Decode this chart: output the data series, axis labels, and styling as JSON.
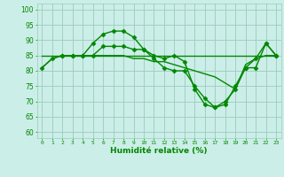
{
  "background_color": "#cceee8",
  "grid_color": "#99ccbb",
  "line_color": "#008800",
  "marker_color": "#008800",
  "xlabel": "Humidité relative (%)",
  "xlabel_color": "#008800",
  "ylabel_ticks": [
    60,
    65,
    70,
    75,
    80,
    85,
    90,
    95,
    100
  ],
  "xlim": [
    -0.5,
    23.5
  ],
  "ylim": [
    58,
    102
  ],
  "series": [
    {
      "x": [
        0,
        1,
        2,
        3,
        4,
        5,
        6,
        7,
        8,
        9,
        10,
        11,
        12,
        13,
        14,
        15,
        16,
        17,
        18,
        19,
        20,
        21,
        22,
        23
      ],
      "y": [
        81,
        84,
        85,
        85,
        85,
        89,
        92,
        93,
        93,
        91,
        87,
        84,
        81,
        80,
        80,
        75,
        71,
        68,
        70,
        74,
        81,
        81,
        89,
        85
      ],
      "has_markers": true,
      "linewidth": 1.0
    },
    {
      "x": [
        0,
        1,
        2,
        3,
        4,
        5,
        6,
        7,
        8,
        9,
        10,
        11,
        12,
        13,
        14,
        15,
        16,
        17,
        18,
        19,
        20,
        21,
        22,
        23
      ],
      "y": [
        85,
        85,
        85,
        85,
        85,
        85,
        85,
        85,
        85,
        85,
        85,
        85,
        85,
        85,
        85,
        85,
        85,
        85,
        85,
        85,
        85,
        85,
        85,
        85
      ],
      "has_markers": false,
      "linewidth": 1.0
    },
    {
      "x": [
        0,
        1,
        2,
        3,
        4,
        5,
        6,
        7,
        8,
        9,
        10,
        11,
        12,
        13,
        14,
        15,
        16,
        17,
        18,
        19,
        20,
        21,
        22,
        23
      ],
      "y": [
        81,
        84,
        85,
        85,
        85,
        85,
        85,
        85,
        85,
        84,
        84,
        83,
        83,
        82,
        81,
        80,
        79,
        78,
        76,
        74,
        82,
        84,
        85,
        85
      ],
      "has_markers": false,
      "linewidth": 1.0
    },
    {
      "x": [
        2,
        3,
        4,
        5,
        6,
        7,
        8,
        9,
        10,
        11,
        12,
        13,
        14,
        15,
        16,
        17,
        18,
        19,
        20,
        21,
        22,
        23
      ],
      "y": [
        85,
        85,
        85,
        85,
        88,
        88,
        88,
        87,
        87,
        85,
        84,
        85,
        83,
        74,
        69,
        68,
        69,
        75,
        81,
        84,
        89,
        85
      ],
      "has_markers": true,
      "linewidth": 1.0
    }
  ]
}
